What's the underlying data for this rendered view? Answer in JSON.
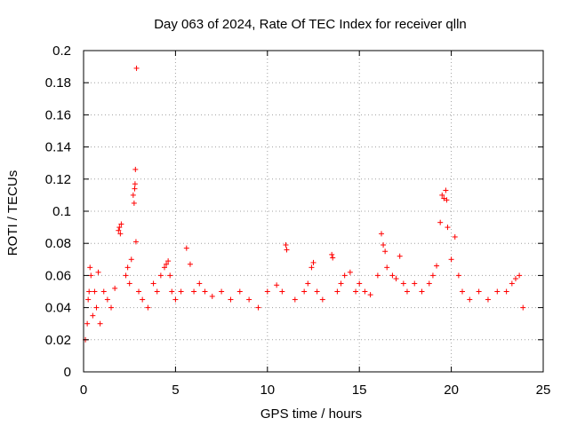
{
  "chart_data": {
    "type": "scatter",
    "title": "Day 063 of 2024, Rate Of TEC Index for receiver qlln",
    "xlabel": "GPS time / hours",
    "ylabel": "ROTI / TECUs",
    "xlim": [
      0,
      25
    ],
    "ylim": [
      0,
      0.2
    ],
    "xticks": [
      0,
      5,
      10,
      15,
      20,
      25
    ],
    "yticks": [
      0,
      0.02,
      0.04,
      0.06,
      0.08,
      0.1,
      0.12,
      0.14,
      0.16,
      0.18,
      0.2
    ],
    "grid": true,
    "marker": "+",
    "color": "#ff0000",
    "series": [
      {
        "name": "ROTI",
        "points": [
          [
            0.1,
            0.02
          ],
          [
            0.2,
            0.03
          ],
          [
            0.25,
            0.045
          ],
          [
            0.3,
            0.05
          ],
          [
            0.35,
            0.065
          ],
          [
            0.4,
            0.06
          ],
          [
            0.5,
            0.035
          ],
          [
            0.6,
            0.05
          ],
          [
            0.7,
            0.04
          ],
          [
            0.8,
            0.062
          ],
          [
            0.9,
            0.03
          ],
          [
            1.1,
            0.05
          ],
          [
            1.3,
            0.045
          ],
          [
            1.5,
            0.04
          ],
          [
            1.7,
            0.052
          ],
          [
            1.9,
            0.088
          ],
          [
            1.95,
            0.09
          ],
          [
            2.0,
            0.086
          ],
          [
            2.05,
            0.092
          ],
          [
            2.3,
            0.06
          ],
          [
            2.4,
            0.065
          ],
          [
            2.5,
            0.055
          ],
          [
            2.6,
            0.07
          ],
          [
            2.7,
            0.11
          ],
          [
            2.75,
            0.105
          ],
          [
            2.78,
            0.114
          ],
          [
            2.8,
            0.117
          ],
          [
            2.82,
            0.126
          ],
          [
            2.85,
            0.081
          ],
          [
            2.88,
            0.189
          ],
          [
            3.0,
            0.05
          ],
          [
            3.2,
            0.045
          ],
          [
            3.5,
            0.04
          ],
          [
            3.8,
            0.055
          ],
          [
            4.0,
            0.05
          ],
          [
            4.2,
            0.06
          ],
          [
            4.4,
            0.065
          ],
          [
            4.5,
            0.067
          ],
          [
            4.6,
            0.069
          ],
          [
            4.7,
            0.06
          ],
          [
            4.8,
            0.05
          ],
          [
            5.0,
            0.045
          ],
          [
            5.3,
            0.05
          ],
          [
            5.6,
            0.077
          ],
          [
            5.8,
            0.067
          ],
          [
            6.0,
            0.05
          ],
          [
            6.3,
            0.055
          ],
          [
            6.6,
            0.05
          ],
          [
            7.0,
            0.047
          ],
          [
            7.5,
            0.05
          ],
          [
            8.0,
            0.045
          ],
          [
            8.5,
            0.05
          ],
          [
            9.0,
            0.045
          ],
          [
            9.5,
            0.04
          ],
          [
            10.0,
            0.05
          ],
          [
            10.5,
            0.054
          ],
          [
            10.8,
            0.05
          ],
          [
            11.0,
            0.079
          ],
          [
            11.05,
            0.076
          ],
          [
            11.5,
            0.045
          ],
          [
            12.0,
            0.05
          ],
          [
            12.2,
            0.055
          ],
          [
            12.4,
            0.065
          ],
          [
            12.5,
            0.068
          ],
          [
            12.7,
            0.05
          ],
          [
            13.0,
            0.045
          ],
          [
            13.5,
            0.073
          ],
          [
            13.55,
            0.071
          ],
          [
            13.8,
            0.05
          ],
          [
            14.0,
            0.055
          ],
          [
            14.2,
            0.06
          ],
          [
            14.5,
            0.062
          ],
          [
            14.8,
            0.05
          ],
          [
            15.0,
            0.055
          ],
          [
            15.3,
            0.05
          ],
          [
            15.6,
            0.048
          ],
          [
            16.0,
            0.06
          ],
          [
            16.2,
            0.086
          ],
          [
            16.3,
            0.079
          ],
          [
            16.4,
            0.075
          ],
          [
            16.5,
            0.065
          ],
          [
            16.8,
            0.06
          ],
          [
            17.0,
            0.058
          ],
          [
            17.2,
            0.072
          ],
          [
            17.4,
            0.055
          ],
          [
            17.6,
            0.05
          ],
          [
            18.0,
            0.055
          ],
          [
            18.4,
            0.05
          ],
          [
            18.8,
            0.055
          ],
          [
            19.0,
            0.06
          ],
          [
            19.2,
            0.066
          ],
          [
            19.4,
            0.093
          ],
          [
            19.5,
            0.11
          ],
          [
            19.6,
            0.108
          ],
          [
            19.7,
            0.113
          ],
          [
            19.75,
            0.107
          ],
          [
            19.8,
            0.09
          ],
          [
            20.0,
            0.07
          ],
          [
            20.2,
            0.084
          ],
          [
            20.4,
            0.06
          ],
          [
            20.6,
            0.05
          ],
          [
            21.0,
            0.045
          ],
          [
            21.5,
            0.05
          ],
          [
            22.0,
            0.045
          ],
          [
            22.5,
            0.05
          ],
          [
            23.0,
            0.05
          ],
          [
            23.3,
            0.055
          ],
          [
            23.5,
            0.058
          ],
          [
            23.7,
            0.06
          ],
          [
            23.9,
            0.04
          ]
        ]
      }
    ]
  }
}
